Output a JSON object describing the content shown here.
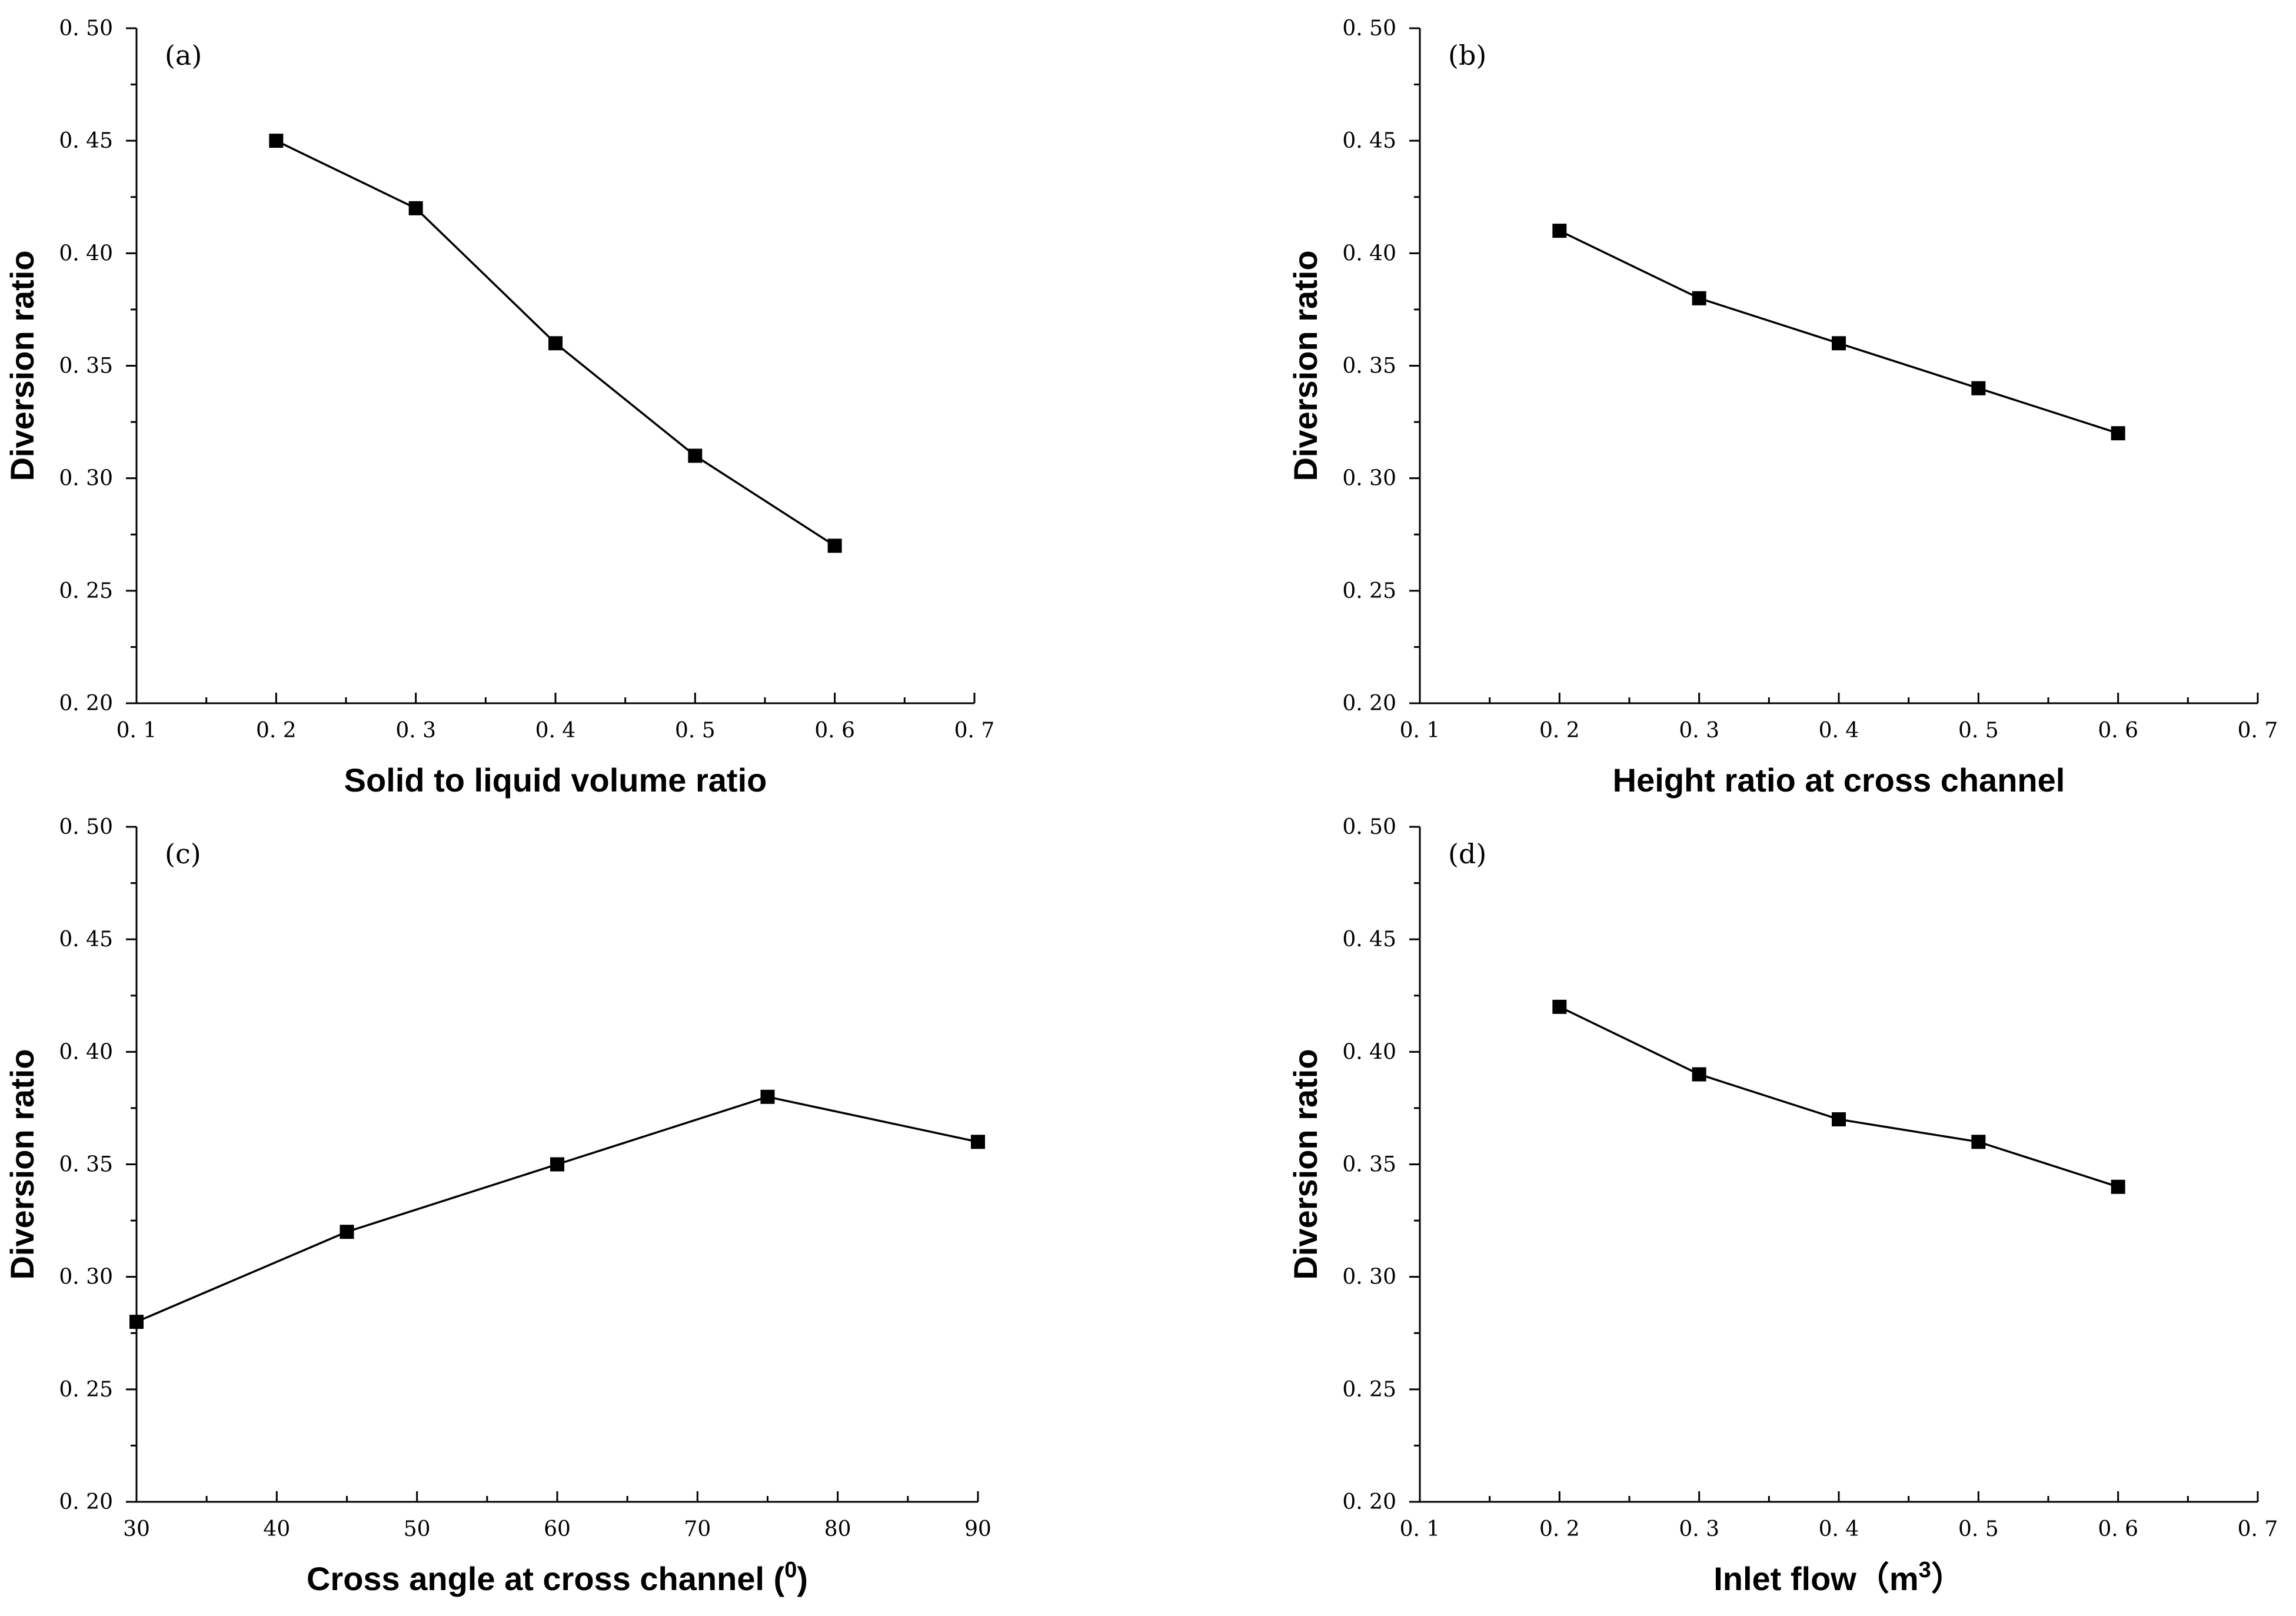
{
  "figure": {
    "colors": {
      "axis": "#000000",
      "series": "#000000",
      "background": "#ffffff"
    }
  },
  "chart_data": [
    {
      "id": "a",
      "panel_label": "(a)",
      "type": "line",
      "xlabel": "Solid to liquid volume ratio",
      "ylabel": "Diversion ratio",
      "xlim": [
        0.1,
        0.7
      ],
      "ylim": [
        0.2,
        0.5
      ],
      "xticks": [
        0.1,
        0.2,
        0.3,
        0.4,
        0.5,
        0.6,
        0.7
      ],
      "xtick_labels": [
        "0. 1",
        "0. 2",
        "0. 3",
        "0. 4",
        "0. 5",
        "0. 6",
        "0. 7"
      ],
      "yticks": [
        0.2,
        0.25,
        0.3,
        0.35,
        0.4,
        0.45,
        0.5
      ],
      "ytick_labels": [
        "0. 20",
        "0. 25",
        "0. 30",
        "0. 35",
        "0. 40",
        "0. 45",
        "0. 50"
      ],
      "x": [
        0.2,
        0.3,
        0.4,
        0.5,
        0.6
      ],
      "y": [
        0.45,
        0.42,
        0.36,
        0.31,
        0.27
      ]
    },
    {
      "id": "b",
      "panel_label": "(b)",
      "type": "line",
      "xlabel": "Height ratio at cross channel",
      "ylabel": "Diversion ratio",
      "xlim": [
        0.1,
        0.7
      ],
      "ylim": [
        0.2,
        0.5
      ],
      "xticks": [
        0.1,
        0.2,
        0.3,
        0.4,
        0.5,
        0.6,
        0.7
      ],
      "xtick_labels": [
        "0. 1",
        "0. 2",
        "0. 3",
        "0. 4",
        "0. 5",
        "0. 6",
        "0. 7"
      ],
      "yticks": [
        0.2,
        0.25,
        0.3,
        0.35,
        0.4,
        0.45,
        0.5
      ],
      "ytick_labels": [
        "0. 20",
        "0. 25",
        "0. 30",
        "0. 35",
        "0. 40",
        "0. 45",
        "0. 50"
      ],
      "x": [
        0.2,
        0.3,
        0.4,
        0.5,
        0.6
      ],
      "y": [
        0.41,
        0.38,
        0.36,
        0.34,
        0.32
      ]
    },
    {
      "id": "c",
      "panel_label": "(c)",
      "type": "line",
      "xlabel": "Cross angle at cross channel (",
      "xlabel_sup": "0",
      "xlabel_suffix": ")",
      "ylabel": "Diversion ratio",
      "xlim": [
        30,
        90
      ],
      "ylim": [
        0.2,
        0.5
      ],
      "xticks": [
        30,
        40,
        50,
        60,
        70,
        80,
        90
      ],
      "xtick_labels": [
        "30",
        "40",
        "50",
        "60",
        "70",
        "80",
        "90"
      ],
      "yticks": [
        0.2,
        0.25,
        0.3,
        0.35,
        0.4,
        0.45,
        0.5
      ],
      "ytick_labels": [
        "0. 20",
        "0. 25",
        "0. 30",
        "0. 35",
        "0. 40",
        "0. 45",
        "0. 50"
      ],
      "x": [
        30,
        45,
        60,
        75,
        90
      ],
      "y": [
        0.28,
        0.32,
        0.35,
        0.38,
        0.36
      ]
    },
    {
      "id": "d",
      "panel_label": "(d)",
      "type": "line",
      "xlabel": "Inlet flow（m",
      "xlabel_sup": "3",
      "xlabel_suffix": "）",
      "ylabel": "Diversion ratio",
      "xlim": [
        0.1,
        0.7
      ],
      "ylim": [
        0.2,
        0.5
      ],
      "xticks": [
        0.1,
        0.2,
        0.3,
        0.4,
        0.5,
        0.6,
        0.7
      ],
      "xtick_labels": [
        "0. 1",
        "0. 2",
        "0. 3",
        "0. 4",
        "0. 5",
        "0. 6",
        "0. 7"
      ],
      "yticks": [
        0.2,
        0.25,
        0.3,
        0.35,
        0.4,
        0.45,
        0.5
      ],
      "ytick_labels": [
        "0. 20",
        "0. 25",
        "0. 30",
        "0. 35",
        "0. 40",
        "0. 45",
        "0. 50"
      ],
      "x": [
        0.2,
        0.3,
        0.4,
        0.5,
        0.6
      ],
      "y": [
        0.42,
        0.39,
        0.37,
        0.36,
        0.34
      ]
    }
  ]
}
